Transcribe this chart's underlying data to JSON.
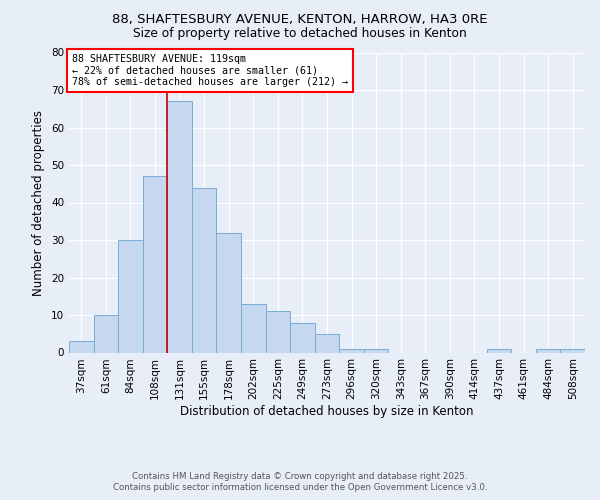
{
  "title1": "88, SHAFTESBURY AVENUE, KENTON, HARROW, HA3 0RE",
  "title2": "Size of property relative to detached houses in Kenton",
  "xlabel": "Distribution of detached houses by size in Kenton",
  "ylabel": "Number of detached properties",
  "bin_labels": [
    "37sqm",
    "61sqm",
    "84sqm",
    "108sqm",
    "131sqm",
    "155sqm",
    "178sqm",
    "202sqm",
    "225sqm",
    "249sqm",
    "273sqm",
    "296sqm",
    "320sqm",
    "343sqm",
    "367sqm",
    "390sqm",
    "414sqm",
    "437sqm",
    "461sqm",
    "484sqm",
    "508sqm"
  ],
  "bar_values": [
    3,
    10,
    30,
    47,
    67,
    44,
    32,
    13,
    11,
    8,
    5,
    1,
    1,
    0,
    0,
    0,
    0,
    1,
    0,
    1,
    1
  ],
  "bar_color": "#c5d8f0",
  "bar_edge_color": "#7aadd4",
  "red_line_x": 3.5,
  "annotation_title": "88 SHAFTESBURY AVENUE: 119sqm",
  "annotation_line1": "← 22% of detached houses are smaller (61)",
  "annotation_line2": "78% of semi-detached houses are larger (212) →",
  "footer1": "Contains HM Land Registry data © Crown copyright and database right 2025.",
  "footer2": "Contains public sector information licensed under the Open Government Licence v3.0.",
  "bg_color": "#e8eef8",
  "ylim": [
    0,
    80
  ],
  "yticks": [
    0,
    10,
    20,
    30,
    40,
    50,
    60,
    70,
    80
  ]
}
